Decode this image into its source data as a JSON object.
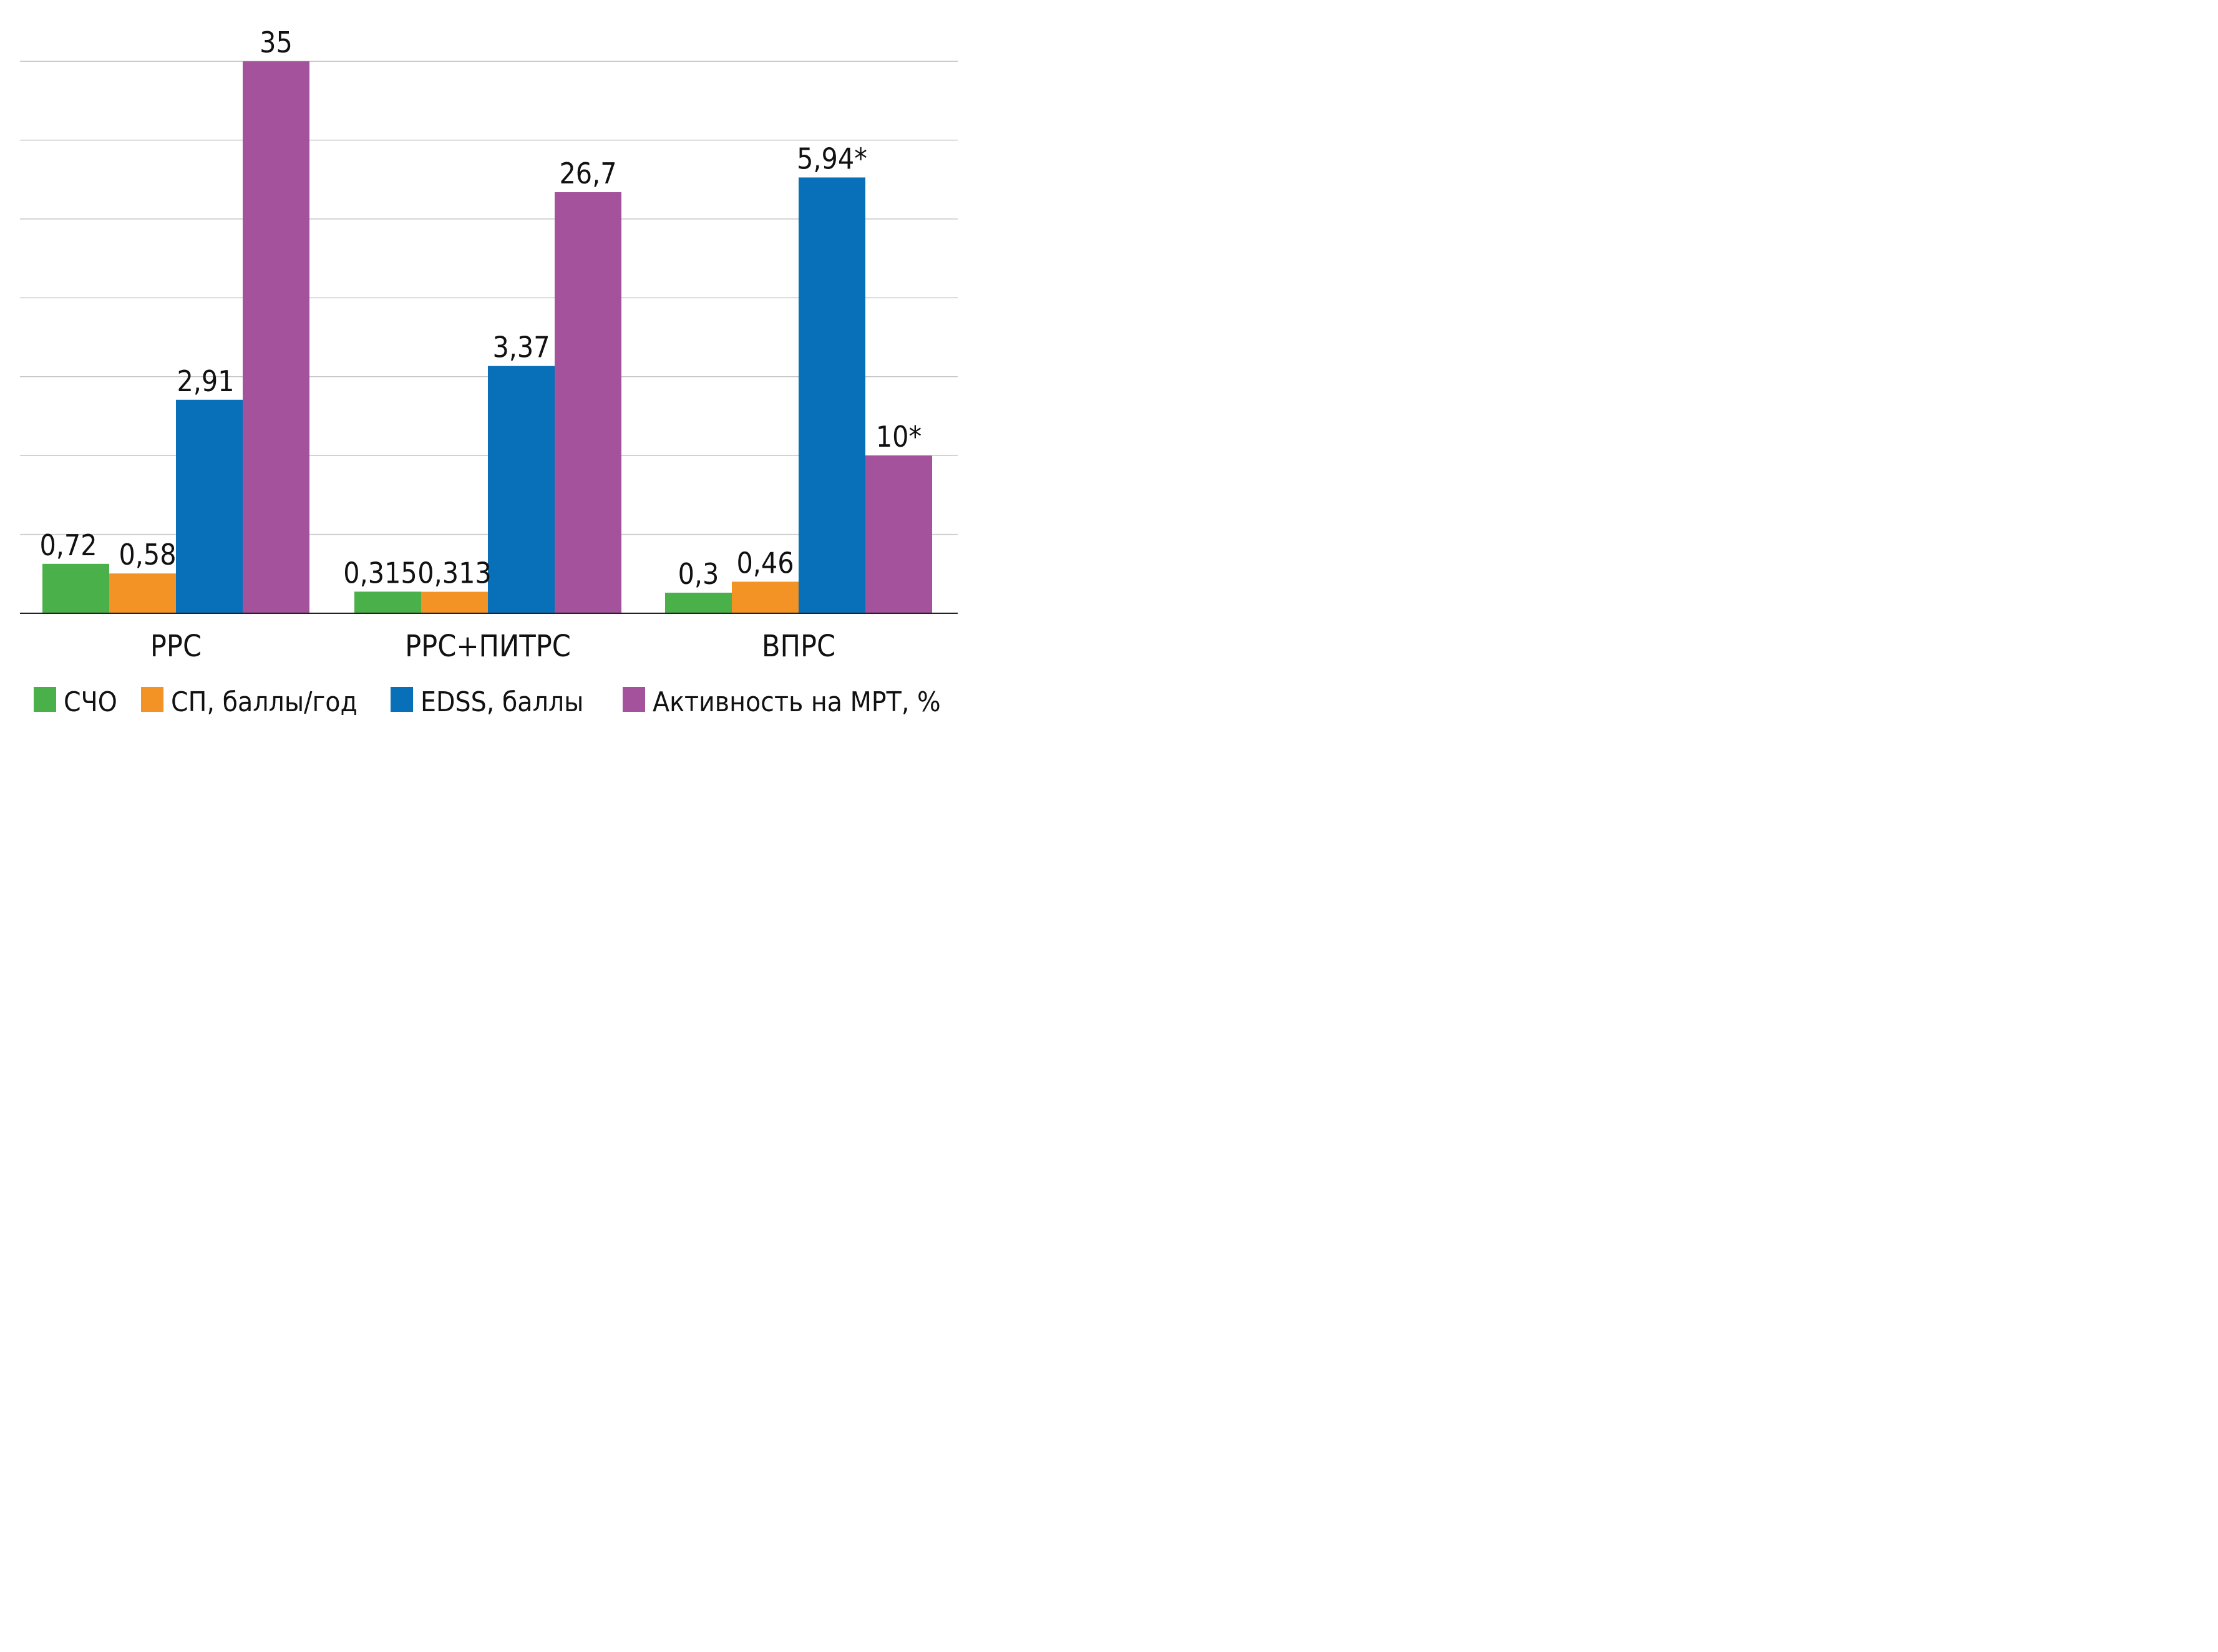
{
  "chart_data": {
    "type": "bar",
    "title": "",
    "xlabel": "",
    "ylabel": "",
    "ylim": [
      0,
      35
    ],
    "grid": true,
    "legend_position": "bottom",
    "categories": [
      "РРС",
      "РРС+ПИТРС",
      "ВПРС"
    ],
    "series": [
      {
        "name": "СЧО",
        "color": "#4ab049",
        "values": [
          0.72,
          0.315,
          0.3
        ],
        "labels": [
          "0,72",
          "0,315",
          "0,3"
        ]
      },
      {
        "name": "СП, баллы/год",
        "color": "#f39325",
        "values": [
          0.58,
          0.313,
          0.46
        ],
        "labels": [
          "0,58",
          "0,313",
          "0,46"
        ]
      },
      {
        "name": "EDSS, баллы",
        "color": "#0870b8",
        "values": [
          2.91,
          3.37,
          5.94
        ],
        "labels": [
          "2,91",
          "3,37",
          "5,94*"
        ]
      },
      {
        "name": "Активность на МРТ, %",
        "color": "#a4529b",
        "values": [
          35,
          26.7,
          10
        ],
        "labels": [
          "35",
          "26,7",
          "10*"
        ]
      }
    ]
  }
}
